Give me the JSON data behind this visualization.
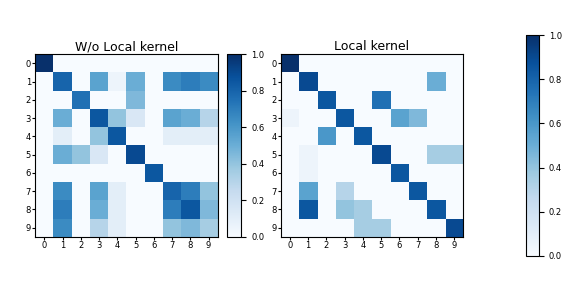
{
  "title1": "W/o Local kernel",
  "title2": "Local kernel",
  "matrix1": [
    [
      1.0,
      0.0,
      0.0,
      0.0,
      0.0,
      0.0,
      0.0,
      0.0,
      0.0,
      0.0
    ],
    [
      0.0,
      0.8,
      0.0,
      0.55,
      0.05,
      0.5,
      0.0,
      0.65,
      0.7,
      0.65
    ],
    [
      0.0,
      0.0,
      0.75,
      0.0,
      0.0,
      0.45,
      0.0,
      0.0,
      0.0,
      0.0
    ],
    [
      0.0,
      0.5,
      0.0,
      0.85,
      0.4,
      0.15,
      0.0,
      0.55,
      0.5,
      0.3
    ],
    [
      0.0,
      0.1,
      0.0,
      0.4,
      0.85,
      0.0,
      0.0,
      0.1,
      0.1,
      0.1
    ],
    [
      0.0,
      0.5,
      0.4,
      0.15,
      0.0,
      0.9,
      0.0,
      0.0,
      0.0,
      0.0
    ],
    [
      0.0,
      0.0,
      0.0,
      0.0,
      0.0,
      0.0,
      0.85,
      0.0,
      0.0,
      0.0
    ],
    [
      0.0,
      0.65,
      0.0,
      0.55,
      0.1,
      0.0,
      0.0,
      0.8,
      0.7,
      0.4
    ],
    [
      0.0,
      0.7,
      0.0,
      0.5,
      0.1,
      0.0,
      0.0,
      0.7,
      0.85,
      0.45
    ],
    [
      0.0,
      0.65,
      0.0,
      0.3,
      0.1,
      0.0,
      0.0,
      0.4,
      0.45,
      0.35
    ]
  ],
  "matrix2": [
    [
      1.0,
      0.0,
      0.0,
      0.0,
      0.0,
      0.0,
      0.0,
      0.0,
      0.0,
      0.0
    ],
    [
      0.0,
      0.9,
      0.0,
      0.0,
      0.0,
      0.0,
      0.0,
      0.0,
      0.5,
      0.0
    ],
    [
      0.0,
      0.0,
      0.85,
      0.0,
      0.0,
      0.75,
      0.0,
      0.0,
      0.0,
      0.0
    ],
    [
      0.05,
      0.0,
      0.0,
      0.85,
      0.0,
      0.0,
      0.55,
      0.45,
      0.0,
      0.0
    ],
    [
      0.0,
      0.0,
      0.6,
      0.0,
      0.85,
      0.0,
      0.0,
      0.0,
      0.0,
      0.0
    ],
    [
      0.0,
      0.05,
      0.0,
      0.0,
      0.0,
      0.9,
      0.0,
      0.0,
      0.35,
      0.35
    ],
    [
      0.0,
      0.05,
      0.0,
      0.0,
      0.0,
      0.0,
      0.85,
      0.0,
      0.0,
      0.0
    ],
    [
      0.0,
      0.55,
      0.0,
      0.3,
      0.0,
      0.0,
      0.0,
      0.85,
      0.0,
      0.0
    ],
    [
      0.0,
      0.85,
      0.0,
      0.4,
      0.35,
      0.0,
      0.0,
      0.0,
      0.85,
      0.0
    ],
    [
      0.0,
      0.0,
      0.0,
      0.0,
      0.35,
      0.35,
      0.0,
      0.0,
      0.0,
      0.9
    ]
  ],
  "vmin": 0.0,
  "vmax": 1.0,
  "cmap": "Blues",
  "tick_labels": [
    "0",
    "1",
    "2",
    "3",
    "4",
    "5",
    "6",
    "7",
    "8",
    "9"
  ],
  "figsize": [
    5.86,
    2.94
  ],
  "dpi": 100
}
